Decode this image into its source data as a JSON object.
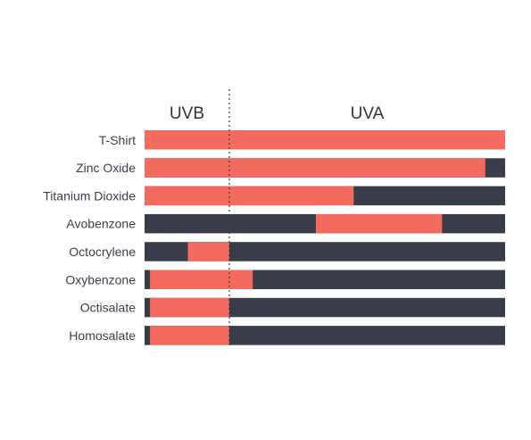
{
  "chart_data": {
    "type": "bar",
    "x_domain": [
      0,
      1
    ],
    "regions": [
      {
        "label": "UVB",
        "start": 0,
        "end": 0.235
      },
      {
        "label": "UVA",
        "start": 0.235,
        "end": 1
      }
    ],
    "colors": {
      "covered": "#f26b5e",
      "uncovered": "#393d49",
      "divider": "#3a3a3a"
    },
    "categories": [
      "T-Shirt",
      "Zinc Oxide",
      "Titanium Dioxide",
      "Avobenzone",
      "Octocrylene",
      "Oxybenzone",
      "Octisalate",
      "Homosalate"
    ],
    "coverage": [
      [
        0,
        1
      ],
      [
        0,
        0.945
      ],
      [
        0,
        0.58
      ],
      [
        0.475,
        0.825
      ],
      [
        0.12,
        0.235
      ],
      [
        0.015,
        0.3
      ],
      [
        0.015,
        0.235
      ],
      [
        0.015,
        0.235
      ]
    ]
  }
}
